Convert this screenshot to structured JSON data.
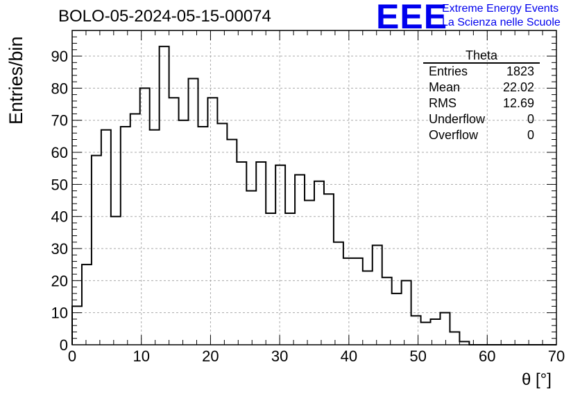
{
  "title": "BOLO-05-2024-05-15-00074",
  "logo": {
    "mark": "EEE",
    "line1": "Extreme Energy Events",
    "line2": "La Scienza nelle Scuole",
    "color": "#0000ee"
  },
  "stats": {
    "title": "Theta",
    "rows": [
      {
        "label": "Entries",
        "value": "1823"
      },
      {
        "label": "Mean",
        "value": "22.02"
      },
      {
        "label": "RMS",
        "value": "12.69"
      },
      {
        "label": "Underflow",
        "value": "0"
      },
      {
        "label": "Overflow",
        "value": "0"
      }
    ]
  },
  "chart_data": {
    "type": "bar",
    "title": "BOLO-05-2024-05-15-00074",
    "xlabel": "θ [°]",
    "ylabel": "Entries/bin",
    "xlim": [
      0,
      70
    ],
    "ylim": [
      0,
      98
    ],
    "bin_width": 1.4,
    "x_ticks": [
      0,
      10,
      20,
      30,
      40,
      50,
      60,
      70
    ],
    "y_ticks": [
      0,
      10,
      20,
      30,
      40,
      50,
      60,
      70,
      80,
      90
    ],
    "grid": true,
    "values": [
      12,
      25,
      59,
      67,
      40,
      68,
      72,
      80,
      67,
      93,
      77,
      70,
      83,
      68,
      77,
      69,
      64,
      57,
      48,
      57,
      41,
      56,
      41,
      53,
      45,
      51,
      47,
      32,
      27,
      27,
      23,
      31,
      21,
      16,
      20,
      9,
      7,
      8,
      10,
      4,
      1,
      0,
      0,
      0,
      0,
      0,
      0,
      0,
      0,
      0
    ]
  }
}
